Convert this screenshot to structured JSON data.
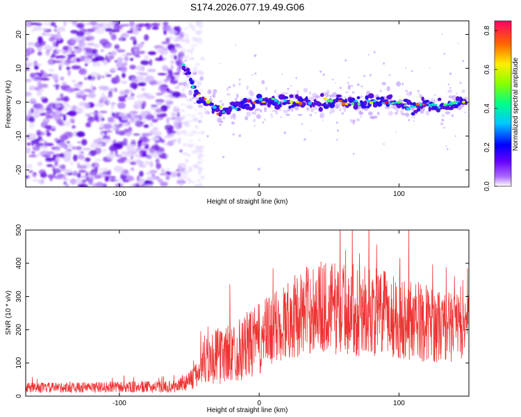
{
  "chart_data": [
    {
      "type": "heatmap",
      "title": "S174.2026.077.19.49.G06",
      "xlabel": "Height of straight line (km)",
      "ylabel": "Frequency (Hz)",
      "xlim": [
        -167,
        150
      ],
      "ylim": [
        -25,
        24
      ],
      "xticks": [
        -100,
        0,
        100
      ],
      "yticks": [
        20,
        10,
        0,
        -10,
        -20
      ],
      "xtick_labels": [
        "-100",
        "0",
        "100"
      ],
      "ytick_labels": [
        "20",
        "10",
        "0",
        "-10",
        "-20"
      ],
      "noise_region_x": [
        -167,
        -55
      ],
      "signal_track": [
        {
          "x": -54,
          "y": 10
        },
        {
          "x": -50,
          "y": 8
        },
        {
          "x": -46,
          "y": 4
        },
        {
          "x": -42,
          "y": 1
        },
        {
          "x": -38,
          "y": 0
        },
        {
          "x": -34,
          "y": -1
        },
        {
          "x": -30,
          "y": -2
        },
        {
          "x": -22,
          "y": -3
        },
        {
          "x": -15,
          "y": -1
        },
        {
          "x": 0,
          "y": 0
        },
        {
          "x": 20,
          "y": 0
        },
        {
          "x": 50,
          "y": 0
        },
        {
          "x": 80,
          "y": 0
        },
        {
          "x": 110,
          "y": -1
        },
        {
          "x": 130,
          "y": -1
        },
        {
          "x": 148,
          "y": 0
        }
      ],
      "colorbar": {
        "label": "Normalized spectral amplitude",
        "range": [
          0,
          0.85
        ],
        "ticks": [
          0.0,
          0.2,
          0.4,
          0.6,
          0.8
        ],
        "tick_labels": [
          "0.0",
          "0.2",
          "0.4",
          "0.6",
          "0.8"
        ],
        "colors": [
          "#ffffff",
          "#8800ff",
          "#0000ff",
          "#00ffff",
          "#00ff00",
          "#ffff00",
          "#ff8800",
          "#ff0000",
          "#ff0088"
        ]
      }
    },
    {
      "type": "line",
      "xlabel": "Height of straight line (km)",
      "ylabel": "SNR (10 * v/v)",
      "xlim": [
        -167,
        150
      ],
      "ylim": [
        0,
        500
      ],
      "xticks": [
        -100,
        0,
        100
      ],
      "yticks": [
        0,
        100,
        200,
        300,
        400,
        500
      ],
      "xtick_labels": [
        "-100",
        "0",
        "100"
      ],
      "ytick_labels": [
        "0",
        "100",
        "200",
        "300",
        "400",
        "500"
      ],
      "line_color": "#ee3333",
      "envelope": [
        {
          "x": -167,
          "mean": 25,
          "spread": 15
        },
        {
          "x": -60,
          "mean": 28,
          "spread": 18
        },
        {
          "x": -45,
          "mean": 60,
          "spread": 40
        },
        {
          "x": -40,
          "mean": 110,
          "spread": 80
        },
        {
          "x": -20,
          "mean": 130,
          "spread": 90
        },
        {
          "x": 0,
          "mean": 170,
          "spread": 110
        },
        {
          "x": 20,
          "mean": 230,
          "spread": 120
        },
        {
          "x": 40,
          "mean": 270,
          "spread": 140
        },
        {
          "x": 70,
          "mean": 260,
          "spread": 140
        },
        {
          "x": 100,
          "mean": 240,
          "spread": 130
        },
        {
          "x": 130,
          "mean": 210,
          "spread": 110
        },
        {
          "x": 150,
          "mean": 210,
          "spread": 100
        }
      ]
    }
  ]
}
